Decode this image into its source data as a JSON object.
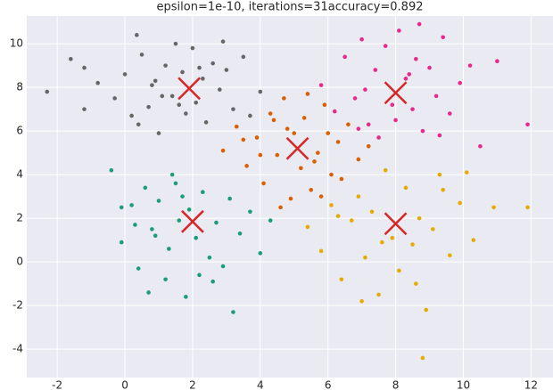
{
  "chart_data": {
    "type": "scatter",
    "title": "epsilon=1e-10, iterations=31accuracy=0.892",
    "xlim": [
      -2.9,
      12.65
    ],
    "ylim": [
      -5.3,
      11.27
    ],
    "xticks": [
      -2,
      0,
      2,
      4,
      6,
      8,
      10,
      12
    ],
    "yticks": [
      -4,
      -2,
      0,
      2,
      4,
      6,
      8,
      10
    ],
    "grid": true,
    "series": [
      {
        "color": "#666666",
        "marker": "dot",
        "x": [
          -2.3,
          -1.6,
          -1.2,
          -0.8,
          -0.3,
          0.0,
          0.2,
          0.35,
          0.5,
          0.7,
          0.9,
          1.0,
          1.2,
          1.4,
          1.5,
          1.7,
          1.8,
          2.0,
          2.1,
          2.3,
          2.4,
          2.6,
          2.8,
          3.0,
          3.2,
          3.5,
          3.7,
          4.0,
          1.1,
          0.4,
          2.9,
          1.6,
          -1.2,
          2.2,
          0.8
        ],
        "values": [
          7.8,
          9.3,
          8.9,
          8.2,
          7.5,
          8.6,
          6.7,
          10.4,
          9.5,
          7.1,
          8.3,
          5.9,
          9.0,
          7.6,
          10.0,
          8.7,
          6.8,
          9.8,
          7.3,
          8.4,
          6.4,
          9.1,
          7.9,
          8.8,
          7.0,
          9.4,
          6.7,
          7.8,
          7.6,
          6.3,
          10.1,
          7.2,
          7.0,
          8.9,
          8.1
        ]
      },
      {
        "color": "#e7298a",
        "marker": "dot",
        "x": [
          5.8,
          6.2,
          6.5,
          6.8,
          7.0,
          7.2,
          7.4,
          7.5,
          7.7,
          7.9,
          8.0,
          8.1,
          8.3,
          8.5,
          8.6,
          8.8,
          9.0,
          9.2,
          9.4,
          9.6,
          9.9,
          10.2,
          10.5,
          11.0,
          11.9,
          7.1,
          8.4,
          9.3,
          6.9,
          8.7
        ],
        "values": [
          8.1,
          6.9,
          9.4,
          7.5,
          10.2,
          6.3,
          8.8,
          5.7,
          9.9,
          7.2,
          6.5,
          10.6,
          8.4,
          7.0,
          9.3,
          6.0,
          8.9,
          7.6,
          10.3,
          6.8,
          8.2,
          9.0,
          5.3,
          9.2,
          6.3,
          7.9,
          8.6,
          5.8,
          6.1,
          10.9
        ]
      },
      {
        "color": "#d95f02",
        "marker": "dot",
        "x": [
          2.9,
          3.3,
          3.6,
          3.9,
          4.1,
          4.3,
          4.5,
          4.7,
          4.9,
          5.0,
          5.2,
          5.3,
          5.5,
          5.7,
          5.9,
          6.1,
          6.3,
          6.6,
          6.9,
          7.2,
          4.0,
          4.6,
          5.4,
          5.8,
          6.4,
          3.5,
          4.8,
          5.6,
          6.0,
          4.4
        ],
        "values": [
          5.1,
          6.2,
          4.4,
          5.7,
          3.6,
          6.8,
          4.9,
          7.5,
          2.9,
          5.9,
          4.3,
          6.6,
          3.3,
          5.0,
          7.2,
          4.0,
          5.5,
          6.3,
          4.7,
          5.3,
          4.9,
          2.5,
          7.7,
          3.0,
          3.8,
          5.6,
          6.1,
          4.6,
          5.9,
          6.5
        ]
      },
      {
        "color": "#1b9e77",
        "marker": "dot",
        "x": [
          -0.4,
          -0.1,
          0.2,
          0.4,
          0.6,
          0.8,
          1.0,
          1.2,
          1.3,
          1.5,
          1.6,
          1.8,
          1.9,
          2.1,
          2.3,
          2.5,
          2.7,
          2.9,
          3.1,
          3.4,
          3.7,
          4.0,
          4.3,
          0.7,
          1.4,
          2.2,
          3.2,
          0.9,
          -0.1,
          1.7,
          2.6,
          0.3
        ],
        "values": [
          4.2,
          0.9,
          2.6,
          -0.3,
          3.4,
          1.5,
          2.8,
          -0.8,
          0.6,
          3.6,
          1.9,
          -1.6,
          2.4,
          1.1,
          3.2,
          0.2,
          1.8,
          -0.2,
          2.9,
          1.3,
          2.3,
          0.4,
          1.9,
          -1.4,
          4.0,
          -0.6,
          -2.3,
          1.2,
          2.5,
          3.0,
          -0.9,
          1.7
        ]
      },
      {
        "color": "#e6ab02",
        "marker": "dot",
        "x": [
          5.4,
          5.8,
          6.1,
          6.4,
          6.7,
          6.9,
          7.1,
          7.3,
          7.5,
          7.7,
          7.9,
          8.1,
          8.3,
          8.5,
          8.7,
          8.9,
          9.1,
          9.3,
          9.6,
          9.9,
          10.3,
          10.9,
          11.9,
          8.8,
          7.0,
          8.6,
          9.4,
          6.3,
          7.6,
          10.1
        ],
        "values": [
          1.6,
          0.5,
          2.6,
          -0.8,
          1.9,
          3.0,
          0.2,
          2.3,
          -1.5,
          4.2,
          1.1,
          -0.4,
          3.4,
          0.8,
          2.0,
          -2.2,
          1.5,
          4.0,
          0.3,
          2.7,
          1.0,
          2.5,
          2.5,
          -4.4,
          -1.8,
          -1.0,
          3.3,
          2.1,
          0.9,
          4.1
        ]
      },
      {
        "color": "#d62728",
        "marker": "x",
        "x": [
          1.9,
          8.0,
          5.1,
          2.0,
          8.0
        ],
        "values": [
          7.95,
          7.75,
          5.2,
          1.85,
          1.75
        ]
      }
    ]
  }
}
